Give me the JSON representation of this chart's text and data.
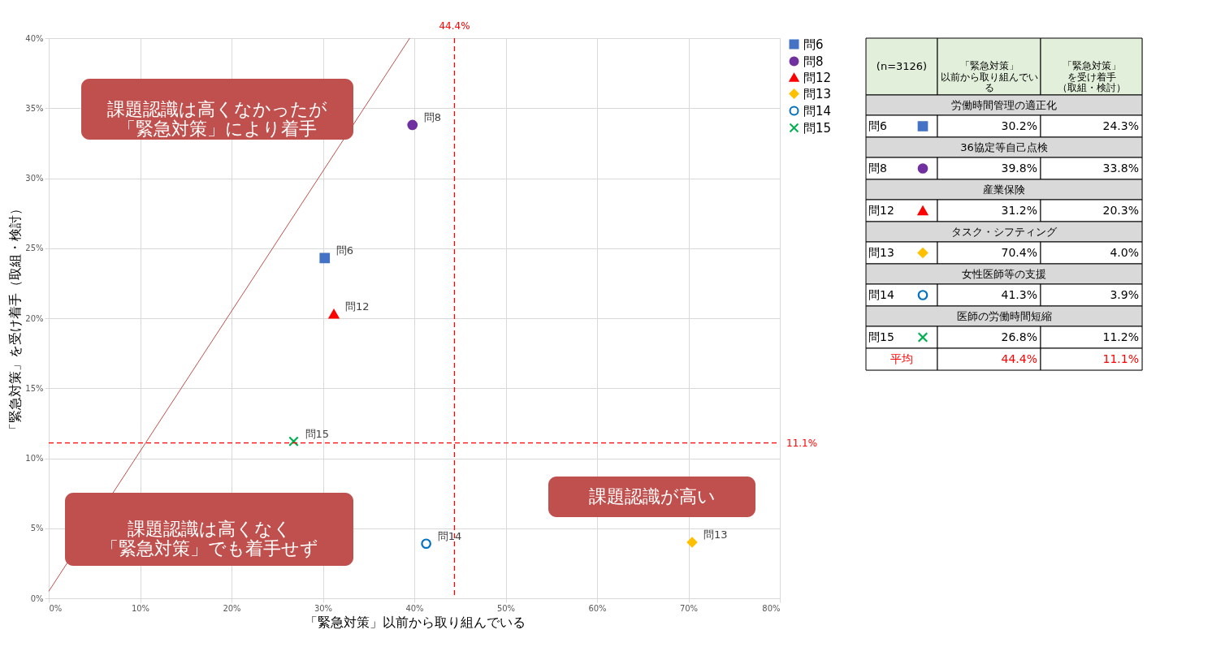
{
  "chart_data": {
    "type": "scatter",
    "xlabel": "「緊急対策」以前から取り組んでいる",
    "ylabel": "「緊急対策」を受け着手（取組・検討）",
    "xlim": [
      0,
      80
    ],
    "ylim": [
      0,
      40
    ],
    "xticks": [
      {
        "value": 0,
        "label": "0%"
      },
      {
        "value": 10,
        "label": "10%"
      },
      {
        "value": 20,
        "label": "20%"
      },
      {
        "value": 30,
        "label": "30%"
      },
      {
        "value": 40,
        "label": "40%"
      },
      {
        "value": 50,
        "label": "50%"
      },
      {
        "value": 60,
        "label": "60%"
      },
      {
        "value": 70,
        "label": "70%"
      },
      {
        "value": 80,
        "label": "80%"
      }
    ],
    "yticks": [
      {
        "value": 0,
        "label": "0%"
      },
      {
        "value": 5,
        "label": "5%"
      },
      {
        "value": 10,
        "label": "10%"
      },
      {
        "value": 15,
        "label": "15%"
      },
      {
        "value": 20,
        "label": "20%"
      },
      {
        "value": 25,
        "label": "25%"
      },
      {
        "value": 30,
        "label": "30%"
      },
      {
        "value": 35,
        "label": "35%"
      },
      {
        "value": 40,
        "label": "40%"
      }
    ],
    "grid": true,
    "legend": "right",
    "series": [
      {
        "name": "問6",
        "color": "#4472c4",
        "marker": "square",
        "x": [
          30.2
        ],
        "values": [
          24.3
        ]
      },
      {
        "name": "問8",
        "color": "#7030a0",
        "marker": "circle",
        "x": [
          39.8
        ],
        "values": [
          33.8
        ]
      },
      {
        "name": "問12",
        "color": "#ff0000",
        "marker": "triangle",
        "x": [
          31.2
        ],
        "values": [
          20.3
        ]
      },
      {
        "name": "問13",
        "color": "#ffc000",
        "marker": "diamond",
        "x": [
          70.4
        ],
        "values": [
          4.0
        ]
      },
      {
        "name": "問14",
        "color": "#0070c0",
        "marker": "circle-open",
        "x": [
          41.3
        ],
        "values": [
          3.9
        ]
      },
      {
        "name": "問15",
        "color": "#00b050",
        "marker": "cross",
        "x": [
          26.8
        ],
        "values": [
          11.2
        ]
      },
      {
        "type": "line",
        "color": "#c0504d",
        "x": [
          0,
          39.5
        ],
        "values": [
          0.5,
          40
        ]
      }
    ],
    "ref_lines": [
      {
        "axis": "x",
        "value": 44.4,
        "label": "44.4%",
        "color": "#ff0000",
        "line_style": "dashed"
      },
      {
        "axis": "y",
        "value": 11.1,
        "label": "11.1%",
        "color": "#ff0000",
        "line_style": "dashed"
      }
    ],
    "annotations": [
      "課題認識は高くなかったが「緊急対策」により着手",
      "課題認識は高くなく「緊急対策」でも着手せず",
      "課題認識が高い",
      "(n=3126)",
      "「緊急対策」以前から取り組んでいる",
      "「緊急対策」を受け着手（取組・検討）",
      "労働時間管理の適正化",
      "30.2%",
      "24.3%",
      "36協定等自己点検",
      "39.8%",
      "33.8%",
      "産業保険",
      "31.2%",
      "20.3%",
      "タスク・シフティング",
      "70.4%",
      "4.0%",
      "女性医師等の支援",
      "41.3%",
      "3.9%",
      "医師の労働時間短縮",
      "26.8%",
      "11.2%",
      "平均"
    ]
  }
}
